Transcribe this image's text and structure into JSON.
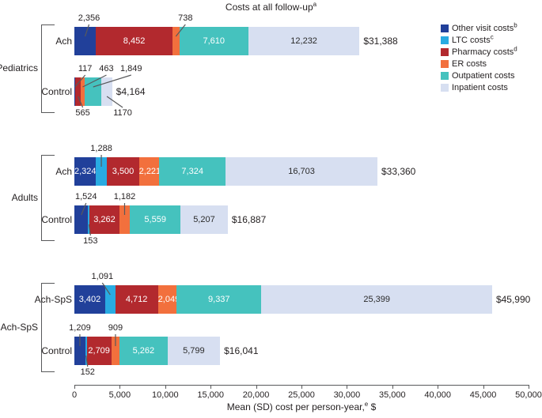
{
  "chart_data": {
    "type": "bar",
    "variant": "horizontal-stacked",
    "title": {
      "text": "Costs at all follow-up",
      "sup": "a"
    },
    "xlabel": {
      "pre": "Mean (SD) cost per person-year,",
      "sup": "e",
      "post": " $"
    },
    "axis": {
      "min": 0,
      "max": 50000,
      "step": 5000,
      "tick_labels": [
        "0",
        "5,000",
        "10,000",
        "15,000",
        "20,000",
        "25,000",
        "30,000",
        "35,000",
        "40,000",
        "45,000",
        "50,000"
      ]
    },
    "legend_position": "top-right",
    "series": [
      {
        "key": "other_visit",
        "label": "Other visit costs",
        "sup": "b",
        "color": "#21409A",
        "text_color": "#ffffff"
      },
      {
        "key": "ltc",
        "label": "LTC costs",
        "sup": "c",
        "color": "#29ABE2",
        "text_color": "#ffffff"
      },
      {
        "key": "pharmacy",
        "label": "Pharmacy costs",
        "sup": "d",
        "color": "#B2292E",
        "text_color": "#ffffff"
      },
      {
        "key": "er",
        "label": "ER costs",
        "sup": "",
        "color": "#F2703D",
        "text_color": "#ffffff"
      },
      {
        "key": "outpatient",
        "label": "Outpatient costs",
        "sup": "",
        "color": "#45C2BE",
        "text_color": "#ffffff"
      },
      {
        "key": "inpatient",
        "label": "Inpatient costs",
        "sup": "",
        "color": "#D7DFF1",
        "text_color": "#2b2b2b"
      }
    ],
    "groups": [
      {
        "label": "Pediatrics",
        "rows": [
          {
            "label": "Ach",
            "total": "$31,388",
            "segments": [
              {
                "series": "other_visit",
                "value": 2356,
                "label": "2,356",
                "pos": "above",
                "dx": 5
              },
              {
                "series": "pharmacy",
                "value": 8452,
                "label": "8,452",
                "pos": "in"
              },
              {
                "series": "er",
                "value": 738,
                "label": "738",
                "pos": "above",
                "dx": 12
              },
              {
                "series": "outpatient",
                "value": 7610,
                "label": "7,610",
                "pos": "in"
              },
              {
                "series": "inpatient",
                "value": 12232,
                "label": "12,232",
                "pos": "in"
              }
            ]
          },
          {
            "label": "Control",
            "total": "$4,164",
            "segments": [
              {
                "series": "other_visit",
                "value": 117,
                "label": "117",
                "pos": "above",
                "dx": 13
              },
              {
                "series": "pharmacy",
                "value": 565,
                "label": "565",
                "pos": "below",
                "dx": 6
              },
              {
                "series": "er",
                "value": 463,
                "label": "463",
                "pos": "above",
                "dx": 30
              },
              {
                "series": "outpatient",
                "value": 1849,
                "label": "1,849",
                "pos": "above",
                "dx": 48
              },
              {
                "series": "inpatient",
                "value": 1170,
                "label": "1170",
                "pos": "below",
                "dx": 20
              }
            ]
          }
        ]
      },
      {
        "label": "Adults",
        "rows": [
          {
            "label": "Ach",
            "total": "$33,360",
            "segments": [
              {
                "series": "other_visit",
                "value": 2324,
                "label": "2,324",
                "pos": "in"
              },
              {
                "series": "ltc",
                "value": 1288,
                "label": "1,288",
                "pos": "above",
                "dx": 0
              },
              {
                "series": "pharmacy",
                "value": 3500,
                "label": "3,500",
                "pos": "in"
              },
              {
                "series": "er",
                "value": 2221,
                "label": "2,221",
                "pos": "in"
              },
              {
                "series": "outpatient",
                "value": 7324,
                "label": "7,324",
                "pos": "in"
              },
              {
                "series": "inpatient",
                "value": 16703,
                "label": "16,703",
                "pos": "in"
              }
            ]
          },
          {
            "label": "Control",
            "total": "$16,887",
            "segments": [
              {
                "series": "other_visit",
                "value": 1524,
                "label": "1,524",
                "pos": "above",
                "dx": 6
              },
              {
                "series": "ltc",
                "value": 153,
                "label": "153",
                "pos": "below",
                "dx": 2
              },
              {
                "series": "pharmacy",
                "value": 3262,
                "label": "3,262",
                "pos": "in"
              },
              {
                "series": "er",
                "value": 1182,
                "label": "1,182",
                "pos": "above",
                "dx": 0
              },
              {
                "series": "outpatient",
                "value": 5559,
                "label": "5,559",
                "pos": "in"
              },
              {
                "series": "inpatient",
                "value": 5207,
                "label": "5,207",
                "pos": "in"
              }
            ]
          }
        ]
      },
      {
        "label": "Ach-SpS",
        "rows": [
          {
            "label": "Ach-SpS",
            "total": "$45,990",
            "segments": [
              {
                "series": "other_visit",
                "value": 3402,
                "label": "3,402",
                "pos": "in"
              },
              {
                "series": "ltc",
                "value": 1091,
                "label": "1,091",
                "pos": "above",
                "dx": -10
              },
              {
                "series": "pharmacy",
                "value": 4712,
                "label": "4,712",
                "pos": "in"
              },
              {
                "series": "er",
                "value": 2049,
                "label": "2,049",
                "pos": "in"
              },
              {
                "series": "outpatient",
                "value": 9337,
                "label": "9,337",
                "pos": "in"
              },
              {
                "series": "inpatient",
                "value": 25399,
                "label": "25,399",
                "pos": "in"
              }
            ]
          },
          {
            "label": "Control",
            "total": "$16,041",
            "segments": [
              {
                "series": "other_visit",
                "value": 1209,
                "label": "1,209",
                "pos": "above",
                "dx": 0
              },
              {
                "series": "ltc",
                "value": 152,
                "label": "152",
                "pos": "below",
                "dx": 2
              },
              {
                "series": "pharmacy",
                "value": 2709,
                "label": "2,709",
                "pos": "in"
              },
              {
                "series": "er",
                "value": 909,
                "label": "909",
                "pos": "above",
                "dx": 0
              },
              {
                "series": "outpatient",
                "value": 5262,
                "label": "5,262",
                "pos": "in"
              },
              {
                "series": "inpatient",
                "value": 5799,
                "label": "5,799",
                "pos": "in"
              }
            ]
          }
        ]
      }
    ]
  }
}
